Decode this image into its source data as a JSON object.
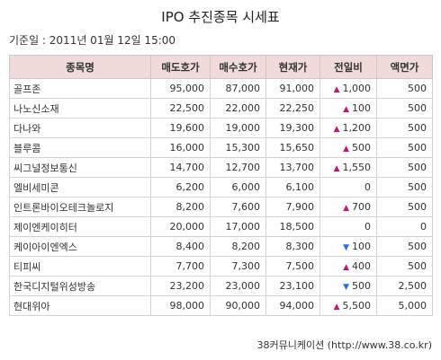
{
  "title": "IPO 추진종목 시세표",
  "basis": "기준일 : 2011년 01월 12일 15:00",
  "table": {
    "headers": [
      "종목명",
      "매도호가",
      "매수호가",
      "현재가",
      "전일비",
      "액면가"
    ],
    "rows": [
      {
        "name": "골프존",
        "ask": "95,000",
        "bid": "87,000",
        "price": "91,000",
        "dir": "up",
        "change": "1,000",
        "par": "500"
      },
      {
        "name": "나노신소재",
        "ask": "22,500",
        "bid": "22,000",
        "price": "22,250",
        "dir": "up",
        "change": "100",
        "par": "500"
      },
      {
        "name": "다나와",
        "ask": "19,600",
        "bid": "19,000",
        "price": "19,300",
        "dir": "up",
        "change": "1,200",
        "par": "500"
      },
      {
        "name": "블루콤",
        "ask": "16,000",
        "bid": "15,300",
        "price": "15,650",
        "dir": "up",
        "change": "500",
        "par": "500"
      },
      {
        "name": "씨그널정보통신",
        "ask": "14,700",
        "bid": "12,700",
        "price": "13,700",
        "dir": "up",
        "change": "1,550",
        "par": "500"
      },
      {
        "name": "엘비세미콘",
        "ask": "6,200",
        "bid": "6,000",
        "price": "6,100",
        "dir": "none",
        "change": "0",
        "par": "500"
      },
      {
        "name": "인트론바이오테크놀로지",
        "ask": "8,200",
        "bid": "7,600",
        "price": "7,900",
        "dir": "up",
        "change": "700",
        "par": "500"
      },
      {
        "name": "제이엔케이히터",
        "ask": "20,000",
        "bid": "17,000",
        "price": "18,500",
        "dir": "none",
        "change": "0",
        "par": "0"
      },
      {
        "name": "케이아이엔엑스",
        "ask": "8,400",
        "bid": "8,200",
        "price": "8,300",
        "dir": "down",
        "change": "100",
        "par": "500"
      },
      {
        "name": "티피씨",
        "ask": "7,700",
        "bid": "7,300",
        "price": "7,500",
        "dir": "up",
        "change": "400",
        "par": "500"
      },
      {
        "name": "한국디지털위성방송",
        "ask": "23,200",
        "bid": "23,000",
        "price": "23,100",
        "dir": "down",
        "change": "500",
        "par": "2,500"
      },
      {
        "name": "현대위아",
        "ask": "98,000",
        "bid": "90,000",
        "price": "94,000",
        "dir": "up",
        "change": "5,500",
        "par": "5,000"
      }
    ]
  },
  "footer": "38커뮤니케이션 (http://www.38.co.kr)",
  "colors": {
    "header_bg": "#f0dada",
    "up": "#c0167a",
    "down": "#2a6fd6"
  },
  "icons": {
    "up": "up-triangle-icon",
    "down": "down-triangle-icon"
  }
}
